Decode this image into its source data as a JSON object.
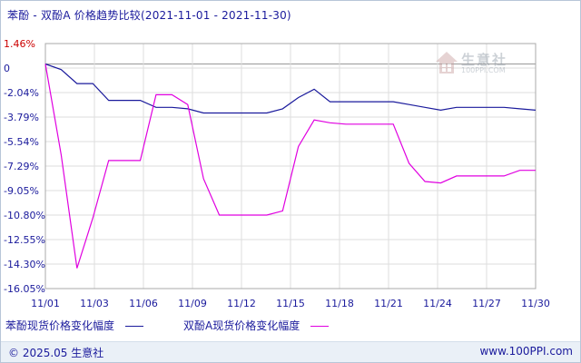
{
  "title": "苯酚 - 双酚A 价格趋势比较(2021-11-01 - 2021-11-30)",
  "legend": [
    {
      "label": "苯酚现货价格变化幅度",
      "color": "#1a1a9c"
    },
    {
      "label": "双酚A现货价格变化幅度",
      "color": "#e000e0"
    }
  ],
  "footer": {
    "copyright": "© 2025.05 生意社",
    "url": "www.100PPI.com"
  },
  "watermark": {
    "brand": "生意社",
    "sub": "100PPI.COM"
  },
  "colors": {
    "axis_label": "#1a1a9c",
    "top_label": "#cc0000",
    "grid": "#dddddd"
  },
  "chart_data": {
    "type": "line",
    "title": "苯酚 - 双酚A 价格趋势比较(2021-11-01 - 2021-11-30)",
    "x_tick_labels": [
      "11/01",
      "11/03",
      "11/06",
      "11/09",
      "11/12",
      "11/15",
      "11/18",
      "11/21",
      "11/24",
      "11/27",
      "11/30"
    ],
    "y_tick_labels": [
      "1.46%",
      "0",
      "-2.04%",
      "-3.79%",
      "-5.54%",
      "-7.29%",
      "-9.05%",
      "-10.80%",
      "-12.55%",
      "-14.30%",
      "-16.05%"
    ],
    "ylim": [
      -16.05,
      1.46
    ],
    "grid": true,
    "legend_position": "bottom",
    "series": [
      {
        "name": "苯酚现货价格变化幅度",
        "color": "#1a1a9c",
        "points": [
          [
            0,
            0
          ],
          [
            1,
            -0.4
          ],
          [
            2,
            -1.4
          ],
          [
            3,
            -1.4
          ],
          [
            4,
            -2.6
          ],
          [
            5,
            -2.6
          ],
          [
            6,
            -2.6
          ],
          [
            7,
            -3.1
          ],
          [
            8,
            -3.1
          ],
          [
            9,
            -3.2
          ],
          [
            10,
            -3.5
          ],
          [
            11,
            -3.5
          ],
          [
            12,
            -3.5
          ],
          [
            13,
            -3.5
          ],
          [
            14,
            -3.5
          ],
          [
            15,
            -3.2
          ],
          [
            16,
            -2.4
          ],
          [
            17,
            -1.8
          ],
          [
            18,
            -2.7
          ],
          [
            19,
            -2.7
          ],
          [
            20,
            -2.7
          ],
          [
            21,
            -2.7
          ],
          [
            22,
            -2.7
          ],
          [
            23,
            -2.9
          ],
          [
            24,
            -3.1
          ],
          [
            25,
            -3.3
          ],
          [
            26,
            -3.1
          ],
          [
            27,
            -3.1
          ],
          [
            28,
            -3.1
          ],
          [
            29,
            -3.1
          ],
          [
            30,
            -3.2
          ],
          [
            31,
            -3.3
          ]
        ]
      },
      {
        "name": "双酚A现货价格变化幅度",
        "color": "#e000e0",
        "points": [
          [
            0,
            0
          ],
          [
            1,
            -6.5
          ],
          [
            2,
            -14.6
          ],
          [
            3,
            -11.0
          ],
          [
            4,
            -6.9
          ],
          [
            5,
            -6.9
          ],
          [
            6,
            -6.9
          ],
          [
            7,
            -2.2
          ],
          [
            8,
            -2.2
          ],
          [
            9,
            -2.9
          ],
          [
            10,
            -8.2
          ],
          [
            11,
            -10.8
          ],
          [
            12,
            -10.8
          ],
          [
            13,
            -10.8
          ],
          [
            14,
            -10.8
          ],
          [
            15,
            -10.5
          ],
          [
            16,
            -5.9
          ],
          [
            17,
            -4.0
          ],
          [
            18,
            -4.2
          ],
          [
            19,
            -4.3
          ],
          [
            20,
            -4.3
          ],
          [
            21,
            -4.3
          ],
          [
            22,
            -4.3
          ],
          [
            23,
            -7.1
          ],
          [
            24,
            -8.4
          ],
          [
            25,
            -8.5
          ],
          [
            26,
            -8.0
          ],
          [
            27,
            -8.0
          ],
          [
            28,
            -8.0
          ],
          [
            29,
            -8.0
          ],
          [
            30,
            -7.6
          ],
          [
            31,
            -7.6
          ]
        ]
      }
    ],
    "x_point_count": 32
  }
}
